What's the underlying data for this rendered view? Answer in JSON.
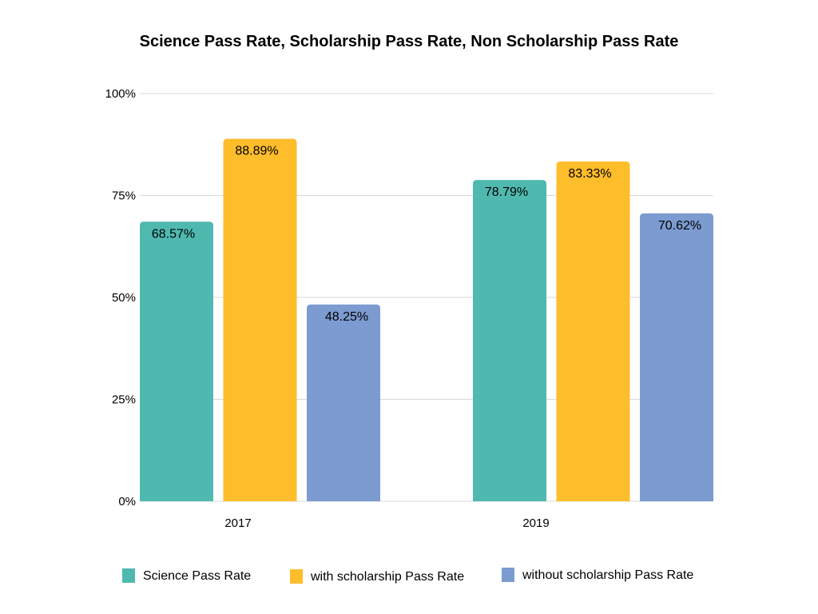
{
  "chart_data": {
    "type": "bar",
    "title": "Science Pass Rate, Scholarship Pass Rate, Non Scholarship Pass Rate",
    "xlabel": "",
    "ylabel": "",
    "categories": [
      "2017",
      "2019"
    ],
    "series": [
      {
        "name": "Science Pass Rate",
        "values": [
          68.57,
          78.79
        ],
        "labels": [
          "68.57%",
          "78.79%"
        ],
        "color": "#4fb9b0"
      },
      {
        "name": "with scholarship Pass Rate",
        "values": [
          88.89,
          83.33
        ],
        "labels": [
          "88.89%",
          "83.33%"
        ],
        "color": "#febd2b"
      },
      {
        "name": "without scholarship Pass Rate",
        "values": [
          48.25,
          70.62
        ],
        "labels": [
          "48.25%",
          "70.62%"
        ],
        "color": "#7c9bd0"
      }
    ],
    "ylim": [
      0,
      100
    ],
    "yticks": [
      0,
      25,
      50,
      75,
      100
    ],
    "ytick_labels": [
      "0%",
      "25%",
      "50%",
      "75%",
      "100%"
    ],
    "grid": true,
    "legend_position": "bottom"
  }
}
